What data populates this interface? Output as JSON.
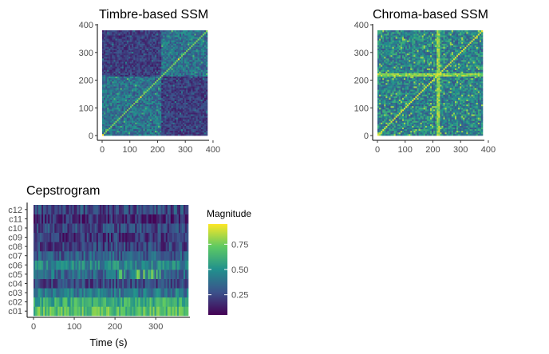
{
  "chart_data": [
    {
      "type": "heatmap",
      "title": "Timbre-based SSM",
      "xlabel": "",
      "ylabel": "",
      "xlim": [
        0,
        380
      ],
      "ylim": [
        0,
        380
      ],
      "xticks": [
        0,
        100,
        200,
        300,
        400
      ],
      "yticks": [
        0,
        100,
        200,
        300,
        400
      ],
      "tick_labels_x": [
        "0",
        "100",
        "200",
        "300",
        "400"
      ],
      "tick_labels_y": [
        "0",
        "100",
        "200",
        "300",
        "400"
      ],
      "grid": false,
      "colormap": "viridis",
      "block_boundary": 215,
      "value_range": [
        0,
        1
      ]
    },
    {
      "type": "heatmap",
      "title": "Chroma-based SSM",
      "xlabel": "",
      "ylabel": "",
      "xlim": [
        0,
        380
      ],
      "ylim": [
        0,
        380
      ],
      "xticks": [
        0,
        100,
        200,
        300,
        400
      ],
      "yticks": [
        0,
        100,
        200,
        300,
        400
      ],
      "tick_labels_x": [
        "0",
        "100",
        "200",
        "300",
        "400"
      ],
      "tick_labels_y": [
        "0",
        "100",
        "200",
        "300",
        "400"
      ],
      "grid": false,
      "colormap": "viridis",
      "highlight_column": 215,
      "value_range": [
        0,
        1
      ]
    },
    {
      "type": "heatmap",
      "title": "Cepstrogram",
      "xlabel": "Time (s)",
      "ylabel": "",
      "xlim": [
        0,
        380
      ],
      "xticks": [
        0,
        100,
        200,
        300
      ],
      "tick_labels_x": [
        "0",
        "100",
        "200",
        "300"
      ],
      "categories": [
        "c01",
        "c02",
        "c03",
        "c04",
        "c05",
        "c06",
        "c07",
        "c08",
        "c09",
        "c10",
        "c11",
        "c12"
      ],
      "row_mean_magnitude": [
        0.7,
        0.62,
        0.4,
        0.22,
        0.35,
        0.45,
        0.3,
        0.2,
        0.16,
        0.22,
        0.12,
        0.22
      ],
      "grid": false,
      "colormap": "viridis",
      "legend": {
        "title": "Magnitude",
        "placement": "right",
        "ticks": [
          0.25,
          0.5,
          0.75
        ],
        "tick_labels": [
          "0.25",
          "0.50",
          "0.75"
        ],
        "range": [
          0.05,
          0.95
        ]
      }
    }
  ]
}
